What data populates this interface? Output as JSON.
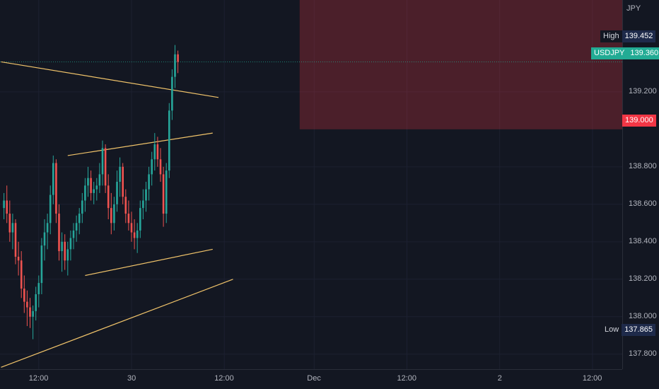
{
  "chart_data": {
    "type": "candlestick",
    "symbol": "USDJPY",
    "currency": "JPY",
    "ylim": [
      137.72,
      139.69
    ],
    "y_ticks": [
      "139.200",
      "138.800",
      "138.600",
      "138.400",
      "138.200",
      "138.000",
      "137.800"
    ],
    "x_ticks": [
      "12:00",
      "30",
      "12:00",
      "Dec",
      "12:00",
      "2",
      "12:00"
    ],
    "x_tick_slots": [
      13,
      45,
      77,
      108,
      140,
      172,
      204
    ],
    "high": {
      "label": "High",
      "value": "139.452"
    },
    "low": {
      "label": "Low",
      "value": "137.865"
    },
    "last": {
      "label": "USDJPY",
      "value": "139.360"
    },
    "level": {
      "value": "139.000"
    },
    "zone": {
      "from_slot": 103,
      "to_slot": 220,
      "top": 139.69,
      "bottom": 139.0
    },
    "trend_lines": [
      {
        "from": [
          0,
          139.36
        ],
        "to": [
          75,
          139.17
        ]
      },
      {
        "from": [
          23,
          138.86
        ],
        "to": [
          73,
          138.98
        ]
      },
      {
        "from": [
          29,
          138.22
        ],
        "to": [
          73,
          138.36
        ]
      },
      {
        "from": [
          0,
          137.73
        ],
        "to": [
          80,
          138.2
        ]
      }
    ],
    "candle_start_slot": 1,
    "ohlc": [
      [
        138.58,
        138.66,
        138.52,
        138.62
      ],
      [
        138.62,
        138.7,
        138.5,
        138.55
      ],
      [
        138.55,
        138.62,
        138.4,
        138.45
      ],
      [
        138.45,
        138.55,
        138.36,
        138.5
      ],
      [
        138.5,
        138.52,
        138.28,
        138.32
      ],
      [
        138.32,
        138.4,
        138.22,
        138.3
      ],
      [
        138.3,
        138.35,
        138.1,
        138.15
      ],
      [
        138.15,
        138.22,
        138.02,
        138.08
      ],
      [
        138.08,
        138.14,
        137.95,
        138.05
      ],
      [
        138.05,
        138.1,
        137.94,
        138.0
      ],
      [
        138.0,
        138.06,
        137.88,
        138.03
      ],
      [
        138.03,
        138.16,
        137.98,
        138.12
      ],
      [
        138.12,
        138.22,
        138.05,
        138.18
      ],
      [
        138.18,
        138.42,
        138.12,
        138.38
      ],
      [
        138.38,
        138.52,
        138.3,
        138.45
      ],
      [
        138.45,
        138.55,
        138.36,
        138.5
      ],
      [
        138.5,
        138.7,
        138.44,
        138.65
      ],
      [
        138.65,
        138.86,
        138.6,
        138.82
      ],
      [
        138.82,
        138.84,
        138.5,
        138.55
      ],
      [
        138.55,
        138.6,
        138.3,
        138.35
      ],
      [
        138.35,
        138.45,
        138.24,
        138.4
      ],
      [
        138.4,
        138.44,
        138.25,
        138.3
      ],
      [
        138.3,
        138.4,
        138.22,
        138.36
      ],
      [
        138.36,
        138.46,
        138.3,
        138.42
      ],
      [
        138.42,
        138.5,
        138.36,
        138.46
      ],
      [
        138.46,
        138.54,
        138.4,
        138.5
      ],
      [
        138.5,
        138.58,
        138.44,
        138.55
      ],
      [
        138.55,
        138.66,
        138.5,
        138.62
      ],
      [
        138.62,
        138.74,
        138.56,
        138.7
      ],
      [
        138.7,
        138.8,
        138.64,
        138.74
      ],
      [
        138.74,
        138.78,
        138.62,
        138.66
      ],
      [
        138.66,
        138.72,
        138.6,
        138.68
      ],
      [
        138.68,
        138.74,
        138.62,
        138.7
      ],
      [
        138.7,
        138.82,
        138.66,
        138.76
      ],
      [
        138.76,
        138.94,
        138.7,
        138.9
      ],
      [
        138.9,
        138.92,
        138.66,
        138.7
      ],
      [
        138.7,
        138.76,
        138.52,
        138.58
      ],
      [
        138.58,
        138.66,
        138.44,
        138.5
      ],
      [
        138.5,
        138.64,
        138.46,
        138.6
      ],
      [
        138.6,
        138.78,
        138.56,
        138.72
      ],
      [
        138.72,
        138.85,
        138.64,
        138.8
      ],
      [
        138.8,
        138.82,
        138.6,
        138.64
      ],
      [
        138.64,
        138.68,
        138.5,
        138.55
      ],
      [
        138.55,
        138.62,
        138.46,
        138.5
      ],
      [
        138.5,
        138.56,
        138.4,
        138.45
      ],
      [
        138.45,
        138.52,
        138.36,
        138.42
      ],
      [
        138.42,
        138.5,
        138.34,
        138.46
      ],
      [
        138.46,
        138.62,
        138.42,
        138.58
      ],
      [
        138.58,
        138.68,
        138.52,
        138.62
      ],
      [
        138.62,
        138.72,
        138.56,
        138.68
      ],
      [
        138.68,
        138.8,
        138.62,
        138.76
      ],
      [
        138.76,
        138.88,
        138.7,
        138.84
      ],
      [
        138.84,
        138.98,
        138.78,
        138.92
      ],
      [
        138.92,
        138.96,
        138.8,
        138.84
      ],
      [
        138.84,
        138.9,
        138.72,
        138.76
      ],
      [
        138.76,
        138.8,
        138.48,
        138.55
      ],
      [
        138.55,
        138.82,
        138.5,
        138.78
      ],
      [
        138.78,
        139.14,
        138.74,
        139.1
      ],
      [
        139.1,
        139.32,
        139.05,
        139.28
      ],
      [
        139.28,
        139.45,
        139.22,
        139.4
      ],
      [
        139.4,
        139.42,
        139.3,
        139.36
      ]
    ]
  }
}
